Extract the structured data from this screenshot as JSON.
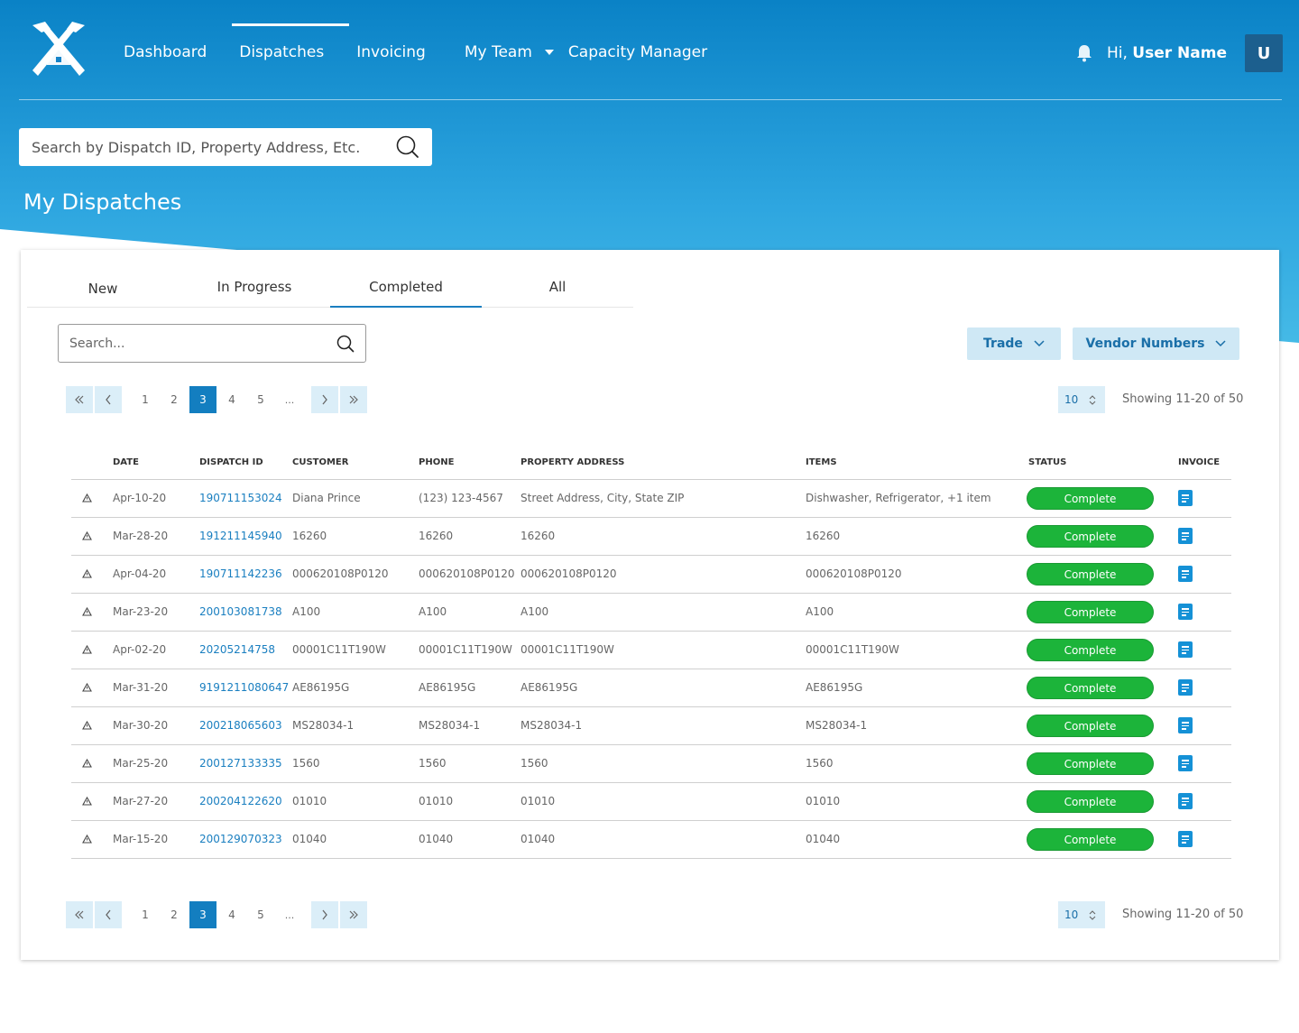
{
  "nav": {
    "items": [
      {
        "label": "Dashboard",
        "active": false
      },
      {
        "label": "Dispatches",
        "active": true
      },
      {
        "label": "Invoicing",
        "active": false
      },
      {
        "label": "My Team",
        "active": false,
        "dropdown": true
      },
      {
        "label": "Capacity Manager",
        "active": false
      }
    ],
    "greeting": "Hi,",
    "user_name": "User Name",
    "avatar_initial": "U"
  },
  "global_search": {
    "placeholder": "Search by Dispatch ID, Property Address, Etc."
  },
  "page_title": "My Dispatches",
  "tabs": [
    {
      "label": "New",
      "active": false
    },
    {
      "label": "In Progress",
      "active": false
    },
    {
      "label": "Completed",
      "active": true
    },
    {
      "label": "All",
      "active": false
    }
  ],
  "table_search": {
    "placeholder": "Search..."
  },
  "filters": {
    "trade_label": "Trade",
    "vendor_label": "Vendor Numbers"
  },
  "pagination": {
    "pages": [
      "1",
      "2",
      "3",
      "4",
      "5",
      "..."
    ],
    "active_page": "3",
    "page_size": "10",
    "showing_text": "Showing 11-20 of 50"
  },
  "table": {
    "columns": [
      "",
      "DATE",
      "DISPATCH ID",
      "CUSTOMER",
      "PHONE",
      "PROPERTY ADDRESS",
      "ITEMS",
      "STATUS",
      "INVOICE"
    ],
    "rows": [
      {
        "date": "Apr-10-20",
        "id": "190711153024",
        "customer": "Diana Prince",
        "phone": "(123) 123-4567",
        "address": "Street Address, City, State ZIP",
        "items": "Dishwasher, Refrigerator, +1 item",
        "status": "Complete"
      },
      {
        "date": "Mar-28-20",
        "id": "191211145940",
        "customer": "16260",
        "phone": "16260",
        "address": "16260",
        "items": "16260",
        "status": "Complete"
      },
      {
        "date": "Apr-04-20",
        "id": "190711142236",
        "customer": "000620108P0120",
        "phone": "000620108P0120",
        "address": "000620108P0120",
        "items": "000620108P0120",
        "status": "Complete"
      },
      {
        "date": "Mar-23-20",
        "id": "200103081738",
        "customer": "A100",
        "phone": "A100",
        "address": "A100",
        "items": "A100",
        "status": "Complete"
      },
      {
        "date": "Apr-02-20",
        "id": "20205214758",
        "customer": "00001C11T190W",
        "phone": "00001C11T190W",
        "address": "00001C11T190W",
        "items": "00001C11T190W",
        "status": "Complete"
      },
      {
        "date": "Mar-31-20",
        "id": "9191211080647",
        "customer": "AE86195G",
        "phone": "AE86195G",
        "address": "AE86195G",
        "items": "AE86195G",
        "status": "Complete"
      },
      {
        "date": "Mar-30-20",
        "id": "200218065603",
        "customer": "MS28034-1",
        "phone": "MS28034-1",
        "address": "MS28034-1",
        "items": "MS28034-1",
        "status": "Complete"
      },
      {
        "date": "Mar-25-20",
        "id": "200127133335",
        "customer": "1560",
        "phone": "1560",
        "address": "1560",
        "items": "1560",
        "status": "Complete"
      },
      {
        "date": "Mar-27-20",
        "id": "200204122620",
        "customer": "01010",
        "phone": "01010",
        "address": "01010",
        "items": "01010",
        "status": "Complete"
      },
      {
        "date": "Mar-15-20",
        "id": "200129070323",
        "customer": "01040",
        "phone": "01040",
        "address": "01040",
        "items": "01040",
        "status": "Complete"
      }
    ]
  },
  "colors": {
    "header_top": "#0a82c6",
    "header_bottom": "#4bbfe8",
    "accent": "#137ec0",
    "status_green": "#1cb43a",
    "filter_bg": "#cfe8f5"
  },
  "icons": {
    "logo": "crossed-hammers-house-logo",
    "notification": "bell-icon",
    "search": "search-icon",
    "invoice": "document-icon",
    "row_flag": "warning-triangle-icon"
  }
}
